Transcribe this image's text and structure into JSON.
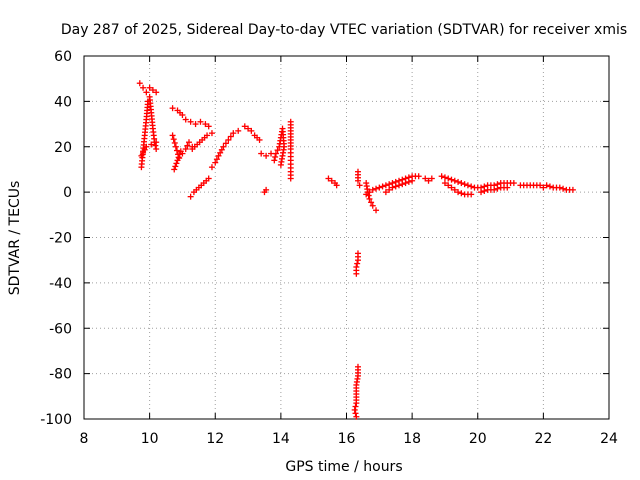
{
  "chart_data": {
    "type": "scatter",
    "title": "Day 287 of 2025, Sidereal Day-to-day VTEC variation (SDTVAR) for receiver xmis",
    "xlabel": "GPS time / hours",
    "ylabel": "SDTVAR / TECUs",
    "xlim": [
      8,
      24
    ],
    "ylim": [
      -100,
      60
    ],
    "xticks": [
      8,
      10,
      12,
      14,
      16,
      18,
      20,
      22,
      24
    ],
    "yticks": [
      -100,
      -80,
      -60,
      -40,
      -20,
      0,
      20,
      40,
      60
    ],
    "grid": true,
    "marker": "+",
    "series_color": "#ff0000",
    "series": [
      {
        "name": "SDTVAR",
        "segments": [
          [
            [
              9.75,
              11
            ],
            [
              9.8,
              18
            ],
            [
              9.85,
              25
            ],
            [
              9.9,
              32
            ],
            [
              9.95,
              40
            ],
            [
              10.0,
              42
            ],
            [
              10.05,
              35
            ],
            [
              10.1,
              28
            ],
            [
              10.15,
              22
            ],
            [
              10.2,
              19
            ]
          ],
          [
            [
              9.7,
              48
            ],
            [
              9.8,
              46
            ],
            [
              9.9,
              44
            ],
            [
              10.0,
              46
            ],
            [
              10.1,
              45
            ],
            [
              10.2,
              44
            ]
          ],
          [
            [
              9.75,
              16
            ],
            [
              9.9,
              20
            ],
            [
              10.05,
              21
            ],
            [
              10.2,
              22
            ]
          ],
          [
            [
              10.7,
              37
            ],
            [
              10.85,
              36
            ],
            [
              11.0,
              34
            ],
            [
              11.1,
              32
            ],
            [
              11.25,
              31
            ],
            [
              11.4,
              30
            ],
            [
              11.55,
              31
            ],
            [
              11.7,
              30
            ],
            [
              11.8,
              29
            ]
          ],
          [
            [
              10.7,
              25
            ],
            [
              10.8,
              20
            ],
            [
              10.9,
              15
            ],
            [
              11.0,
              17
            ],
            [
              11.1,
              19
            ],
            [
              11.2,
              22
            ],
            [
              11.3,
              20
            ]
          ],
          [
            [
              10.75,
              10
            ],
            [
              10.85,
              14
            ],
            [
              10.95,
              18
            ]
          ],
          [
            [
              11.25,
              -2
            ],
            [
              11.35,
              0
            ],
            [
              11.5,
              2
            ],
            [
              11.65,
              4
            ],
            [
              11.8,
              6
            ]
          ],
          [
            [
              11.3,
              19
            ],
            [
              11.45,
              21
            ],
            [
              11.6,
              23
            ],
            [
              11.75,
              25
            ],
            [
              11.9,
              26
            ]
          ],
          [
            [
              11.9,
              11
            ],
            [
              12.0,
              13
            ],
            [
              12.1,
              16
            ],
            [
              12.25,
              20
            ],
            [
              12.4,
              23
            ],
            [
              12.55,
              26
            ],
            [
              12.7,
              27
            ]
          ],
          [
            [
              12.9,
              29
            ],
            [
              13.0,
              28
            ],
            [
              13.1,
              27
            ],
            [
              13.2,
              25
            ],
            [
              13.35,
              23
            ]
          ],
          [
            [
              13.5,
              0
            ],
            [
              13.55,
              1
            ]
          ],
          [
            [
              13.4,
              17
            ],
            [
              13.55,
              16
            ],
            [
              13.7,
              17
            ]
          ],
          [
            [
              13.8,
              14
            ],
            [
              13.85,
              17
            ],
            [
              13.95,
              20
            ],
            [
              14.0,
              24
            ],
            [
              14.05,
              28
            ],
            [
              14.1,
              20
            ],
            [
              14.05,
              16
            ],
            [
              14.0,
              12
            ]
          ],
          [
            [
              14.3,
              31
            ],
            [
              14.3,
              19
            ],
            [
              14.3,
              14
            ],
            [
              14.3,
              9
            ],
            [
              14.3,
              6
            ]
          ],
          [
            [
              15.45,
              6
            ],
            [
              15.55,
              5
            ],
            [
              15.65,
              4
            ],
            [
              15.7,
              3
            ]
          ],
          [
            [
              16.35,
              9
            ],
            [
              16.35,
              5
            ],
            [
              16.4,
              3
            ]
          ],
          [
            [
              16.6,
              4
            ],
            [
              16.65,
              0
            ],
            [
              16.7,
              -3
            ],
            [
              16.8,
              -6
            ],
            [
              16.9,
              -8
            ]
          ],
          [
            [
              16.6,
              -1
            ],
            [
              16.8,
              1
            ],
            [
              17.0,
              2
            ],
            [
              17.2,
              3
            ],
            [
              17.4,
              4
            ],
            [
              17.6,
              5
            ],
            [
              17.8,
              6
            ],
            [
              18.0,
              7
            ],
            [
              18.2,
              7
            ]
          ],
          [
            [
              17.2,
              0
            ],
            [
              17.4,
              2
            ],
            [
              17.6,
              3
            ],
            [
              17.8,
              4
            ],
            [
              18.0,
              5
            ]
          ],
          [
            [
              18.4,
              6
            ],
            [
              18.5,
              5
            ],
            [
              18.6,
              6
            ]
          ],
          [
            [
              18.9,
              7
            ],
            [
              19.1,
              6
            ],
            [
              19.3,
              5
            ],
            [
              19.5,
              4
            ],
            [
              19.7,
              3
            ],
            [
              19.9,
              2
            ],
            [
              20.1,
              2
            ],
            [
              20.3,
              3
            ],
            [
              20.5,
              3
            ],
            [
              20.7,
              4
            ],
            [
              20.9,
              4
            ],
            [
              21.1,
              4
            ]
          ],
          [
            [
              19.0,
              4
            ],
            [
              19.2,
              2
            ],
            [
              19.4,
              0
            ],
            [
              19.6,
              -1
            ],
            [
              19.8,
              -1
            ]
          ],
          [
            [
              20.1,
              0
            ],
            [
              20.3,
              1
            ],
            [
              20.5,
              1
            ],
            [
              20.7,
              2
            ],
            [
              20.9,
              2
            ]
          ],
          [
            [
              21.3,
              3
            ],
            [
              21.5,
              3
            ],
            [
              21.7,
              3
            ],
            [
              21.9,
              3
            ],
            [
              22.0,
              2
            ]
          ],
          [
            [
              22.1,
              3
            ],
            [
              22.3,
              2
            ],
            [
              22.5,
              2
            ],
            [
              22.7,
              1
            ],
            [
              22.9,
              1
            ]
          ],
          [
            [
              16.35,
              -27
            ],
            [
              16.35,
              -30
            ],
            [
              16.3,
              -33
            ],
            [
              16.3,
              -36
            ]
          ],
          [
            [
              16.35,
              -77
            ],
            [
              16.35,
              -81
            ],
            [
              16.3,
              -85
            ],
            [
              16.3,
              -89
            ],
            [
              16.3,
              -93
            ],
            [
              16.25,
              -96
            ],
            [
              16.3,
              -99
            ]
          ]
        ]
      }
    ]
  }
}
